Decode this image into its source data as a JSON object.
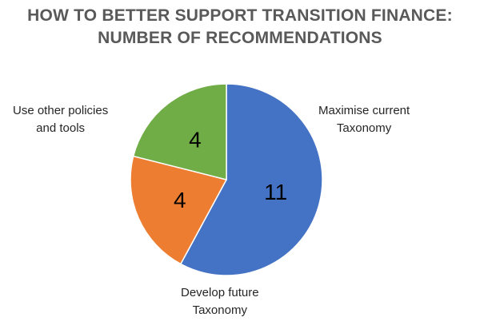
{
  "chart_data": {
    "type": "pie",
    "title": [
      "HOW TO BETTER SUPPORT TRANSITION FINANCE:",
      "NUMBER OF RECOMMENDATIONS"
    ],
    "slices": [
      {
        "label": "Maximise current Taxonomy",
        "label_lines": [
          "Maximise current",
          "Taxonomy"
        ],
        "value": 11,
        "color": "#4472C4"
      },
      {
        "label": "Develop future Taxonomy",
        "label_lines": [
          "Develop future",
          "Taxonomy"
        ],
        "value": 4,
        "color": "#ED7D31"
      },
      {
        "label": "Use other policies and tools",
        "label_lines": [
          "Use other policies",
          "and tools"
        ],
        "value": 4,
        "color": "#70AD47"
      }
    ],
    "start_angle": "12 o'clock",
    "direction": "clockwise",
    "legend": "none"
  }
}
